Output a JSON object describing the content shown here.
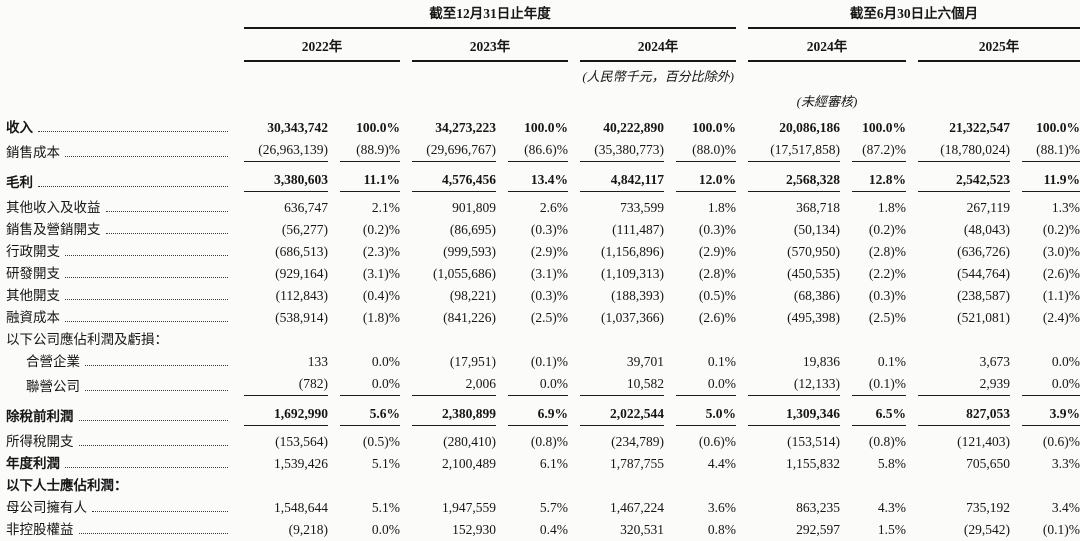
{
  "page": {
    "background": "#fbfbf9",
    "text_color": "#161616"
  },
  "table": {
    "col_groups": [
      {
        "title": "截至12月31日止年度",
        "years": [
          "2022年",
          "2023年",
          "2024年"
        ]
      },
      {
        "title": "截至6月30日止六個月",
        "years": [
          "2024年",
          "2025年"
        ]
      }
    ],
    "notes": {
      "currency_note": "(人民幣千元，百分比除外)",
      "unaudited_note": "(未經審核)"
    },
    "rows": [
      {
        "label": "收入",
        "leaders": true,
        "bold_label": true,
        "bold_values": true,
        "underline": false,
        "indent": false,
        "total": false,
        "values": [
          "30,343,742",
          "100.0%",
          "34,273,223",
          "100.0%",
          "40,222,890",
          "100.0%",
          "20,086,186",
          "100.0%",
          "21,322,547",
          "100.0%"
        ]
      },
      {
        "label": "銷售成本",
        "leaders": true,
        "bold_label": false,
        "bold_values": false,
        "underline": true,
        "indent": false,
        "total": false,
        "values": [
          "(26,963,139)",
          "(88.9)%",
          "(29,696,767)",
          "(86.6)%",
          "(35,380,773)",
          "(88.0)%",
          "(17,517,858)",
          "(87.2)%",
          "(18,780,024)",
          "(88.1)%"
        ]
      },
      {
        "label": "毛利",
        "leaders": true,
        "bold_label": true,
        "bold_values": true,
        "underline": true,
        "indent": false,
        "total": true,
        "values": [
          "3,380,603",
          "11.1%",
          "4,576,456",
          "13.4%",
          "4,842,117",
          "12.0%",
          "2,568,328",
          "12.8%",
          "2,542,523",
          "11.9%"
        ]
      },
      {
        "label": "其他收入及收益",
        "leaders": true,
        "bold_label": false,
        "bold_values": false,
        "underline": false,
        "indent": false,
        "total": false,
        "values": [
          "636,747",
          "2.1%",
          "901,809",
          "2.6%",
          "733,599",
          "1.8%",
          "368,718",
          "1.8%",
          "267,119",
          "1.3%"
        ]
      },
      {
        "label": "銷售及營銷開支",
        "leaders": true,
        "bold_label": false,
        "bold_values": false,
        "underline": false,
        "indent": false,
        "total": false,
        "values": [
          "(56,277)",
          "(0.2)%",
          "(86,695)",
          "(0.3)%",
          "(111,487)",
          "(0.3)%",
          "(50,134)",
          "(0.2)%",
          "(48,043)",
          "(0.2)%"
        ]
      },
      {
        "label": "行政開支",
        "leaders": true,
        "bold_label": false,
        "bold_values": false,
        "underline": false,
        "indent": false,
        "total": false,
        "values": [
          "(686,513)",
          "(2.3)%",
          "(999,593)",
          "(2.9)%",
          "(1,156,896)",
          "(2.9)%",
          "(570,950)",
          "(2.8)%",
          "(636,726)",
          "(3.0)%"
        ]
      },
      {
        "label": "研發開支",
        "leaders": true,
        "bold_label": false,
        "bold_values": false,
        "underline": false,
        "indent": false,
        "total": false,
        "values": [
          "(929,164)",
          "(3.1)%",
          "(1,055,686)",
          "(3.1)%",
          "(1,109,313)",
          "(2.8)%",
          "(450,535)",
          "(2.2)%",
          "(544,764)",
          "(2.6)%"
        ]
      },
      {
        "label": "其他開支",
        "leaders": true,
        "bold_label": false,
        "bold_values": false,
        "underline": false,
        "indent": false,
        "total": false,
        "values": [
          "(112,843)",
          "(0.4)%",
          "(98,221)",
          "(0.3)%",
          "(188,393)",
          "(0.5)%",
          "(68,386)",
          "(0.3)%",
          "(238,587)",
          "(1.1)%"
        ]
      },
      {
        "label": "融資成本",
        "leaders": true,
        "bold_label": false,
        "bold_values": false,
        "underline": false,
        "indent": false,
        "total": false,
        "values": [
          "(538,914)",
          "(1.8)%",
          "(841,226)",
          "(2.5)%",
          "(1,037,366)",
          "(2.6)%",
          "(495,398)",
          "(2.5)%",
          "(521,081)",
          "(2.4)%"
        ]
      },
      {
        "label": "以下公司應佔利潤及虧損：",
        "leaders": false,
        "bold_label": false,
        "bold_values": false,
        "underline": false,
        "indent": false,
        "total": false,
        "values": []
      },
      {
        "label": "合營企業",
        "leaders": true,
        "bold_label": false,
        "bold_values": false,
        "underline": false,
        "indent": true,
        "total": false,
        "values": [
          "133",
          "0.0%",
          "(17,951)",
          "(0.1)%",
          "39,701",
          "0.1%",
          "19,836",
          "0.1%",
          "3,673",
          "0.0%"
        ]
      },
      {
        "label": "聯營公司",
        "leaders": true,
        "bold_label": false,
        "bold_values": false,
        "underline": true,
        "indent": true,
        "total": false,
        "values": [
          "(782)",
          "0.0%",
          "2,006",
          "0.0%",
          "10,582",
          "0.0%",
          "(12,133)",
          "(0.1)%",
          "2,939",
          "0.0%"
        ]
      },
      {
        "label": "除稅前利潤",
        "leaders": true,
        "bold_label": true,
        "bold_values": true,
        "underline": true,
        "indent": false,
        "total": true,
        "values": [
          "1,692,990",
          "5.6%",
          "2,380,899",
          "6.9%",
          "2,022,544",
          "5.0%",
          "1,309,346",
          "6.5%",
          "827,053",
          "3.9%"
        ]
      },
      {
        "label": "所得稅開支",
        "leaders": true,
        "bold_label": false,
        "bold_values": false,
        "underline": false,
        "indent": false,
        "total": false,
        "values": [
          "(153,564)",
          "(0.5)%",
          "(280,410)",
          "(0.8)%",
          "(234,789)",
          "(0.6)%",
          "(153,514)",
          "(0.8)%",
          "(121,403)",
          "(0.6)%"
        ]
      },
      {
        "label": "年度利潤",
        "leaders": true,
        "bold_label": true,
        "bold_values": false,
        "underline": false,
        "indent": false,
        "total": false,
        "values": [
          "1,539,426",
          "5.1%",
          "2,100,489",
          "6.1%",
          "1,787,755",
          "4.4%",
          "1,155,832",
          "5.8%",
          "705,650",
          "3.3%"
        ]
      },
      {
        "label": "以下人士應佔利潤：",
        "leaders": false,
        "bold_label": true,
        "bold_values": false,
        "underline": false,
        "indent": false,
        "total": false,
        "values": []
      },
      {
        "label": "母公司擁有人",
        "leaders": true,
        "bold_label": false,
        "bold_values": false,
        "underline": false,
        "indent": false,
        "total": false,
        "values": [
          "1,548,644",
          "5.1%",
          "1,947,559",
          "5.7%",
          "1,467,224",
          "3.6%",
          "863,235",
          "4.3%",
          "735,192",
          "3.4%"
        ]
      },
      {
        "label": "非控股權益",
        "leaders": true,
        "bold_label": false,
        "bold_values": false,
        "underline": false,
        "indent": false,
        "total": false,
        "values": [
          "(9,218)",
          "0.0%",
          "152,930",
          "0.4%",
          "320,531",
          "0.8%",
          "292,597",
          "1.5%",
          "(29,542)",
          "(0.1)%"
        ]
      }
    ]
  }
}
